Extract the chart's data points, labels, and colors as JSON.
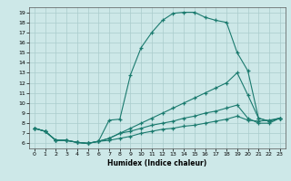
{
  "xlabel": "Humidex (Indice chaleur)",
  "bg_color": "#cde8e8",
  "line_color": "#1a7a6e",
  "grid_color": "#b0d4d4",
  "ylim": [
    5.5,
    19.5
  ],
  "xlim": [
    -0.5,
    23.5
  ],
  "yticks": [
    6,
    7,
    8,
    9,
    10,
    11,
    12,
    13,
    14,
    15,
    16,
    17,
    18,
    19
  ],
  "xticks": [
    0,
    1,
    2,
    3,
    4,
    5,
    6,
    7,
    8,
    9,
    10,
    11,
    12,
    13,
    14,
    15,
    16,
    17,
    18,
    19,
    20,
    21,
    22,
    23
  ],
  "lines": [
    {
      "x": [
        0,
        1,
        2,
        3,
        4,
        5,
        6,
        7,
        8,
        9,
        10,
        11,
        12,
        13,
        14,
        15,
        16,
        17,
        18,
        19,
        20,
        21,
        22,
        23
      ],
      "y": [
        7.5,
        7.2,
        6.3,
        6.3,
        6.1,
        6.0,
        6.2,
        8.3,
        8.4,
        12.8,
        15.5,
        17.0,
        18.2,
        18.9,
        19.0,
        19.0,
        18.5,
        18.2,
        18.0,
        15.0,
        13.2,
        8.5,
        8.2,
        8.5
      ]
    },
    {
      "x": [
        0,
        1,
        2,
        3,
        4,
        5,
        6,
        7,
        8,
        9,
        10,
        11,
        12,
        13,
        14,
        15,
        16,
        17,
        18,
        19,
        20,
        21,
        22,
        23
      ],
      "y": [
        7.5,
        7.2,
        6.3,
        6.3,
        6.1,
        6.0,
        6.2,
        6.5,
        7.0,
        7.5,
        8.0,
        8.5,
        9.0,
        9.5,
        10.0,
        10.5,
        11.0,
        11.5,
        12.0,
        13.0,
        10.8,
        8.5,
        8.2,
        8.5
      ]
    },
    {
      "x": [
        0,
        1,
        2,
        3,
        4,
        5,
        6,
        7,
        8,
        9,
        10,
        11,
        12,
        13,
        14,
        15,
        16,
        17,
        18,
        19,
        20,
        21,
        22,
        23
      ],
      "y": [
        7.5,
        7.2,
        6.3,
        6.3,
        6.1,
        6.0,
        6.2,
        6.5,
        7.0,
        7.2,
        7.5,
        7.8,
        8.0,
        8.2,
        8.5,
        8.7,
        9.0,
        9.2,
        9.5,
        9.8,
        8.5,
        8.0,
        8.0,
        8.5
      ]
    },
    {
      "x": [
        0,
        1,
        2,
        3,
        4,
        5,
        6,
        7,
        8,
        9,
        10,
        11,
        12,
        13,
        14,
        15,
        16,
        17,
        18,
        19,
        20,
        21,
        22,
        23
      ],
      "y": [
        7.5,
        7.2,
        6.3,
        6.3,
        6.1,
        6.0,
        6.2,
        6.3,
        6.5,
        6.7,
        7.0,
        7.2,
        7.4,
        7.5,
        7.7,
        7.8,
        8.0,
        8.2,
        8.4,
        8.7,
        8.3,
        8.2,
        8.3,
        8.5
      ]
    }
  ]
}
